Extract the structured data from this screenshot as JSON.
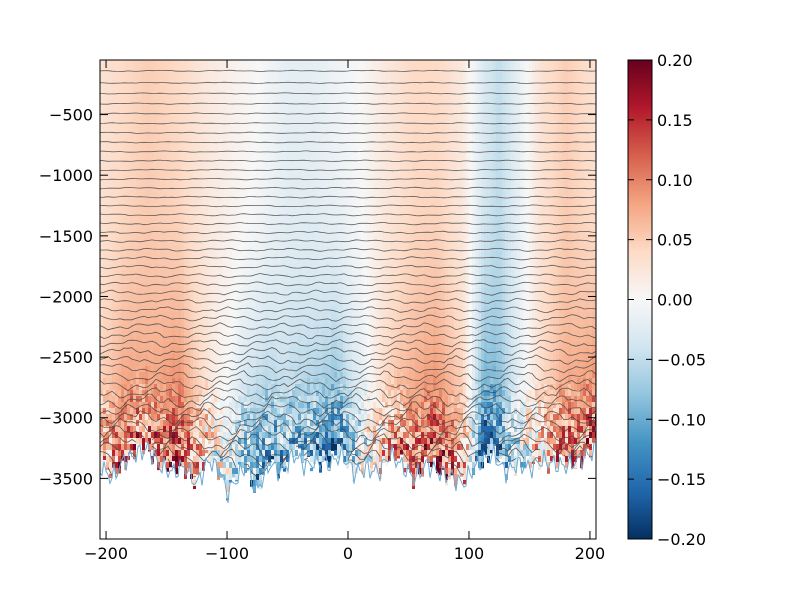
{
  "chart_data": {
    "type": "heatmap",
    "title": "",
    "xlabel": "",
    "ylabel": "",
    "xlim": [
      -205,
      205
    ],
    "ylim": [
      -4000,
      -50
    ],
    "xticks": [
      {
        "value": -200,
        "label": "−200"
      },
      {
        "value": -100,
        "label": "−100"
      },
      {
        "value": 0,
        "label": "0"
      },
      {
        "value": 100,
        "label": "100"
      },
      {
        "value": 200,
        "label": "200"
      }
    ],
    "yticks": [
      {
        "value": -500,
        "label": "−500"
      },
      {
        "value": -1000,
        "label": "−1000"
      },
      {
        "value": -1500,
        "label": "−1500"
      },
      {
        "value": -2000,
        "label": "−2000"
      },
      {
        "value": -2500,
        "label": "−2500"
      },
      {
        "value": -3000,
        "label": "−3000"
      },
      {
        "value": -3500,
        "label": "−3500"
      }
    ],
    "colorbar": {
      "cmap": "RdBu_r",
      "range": [
        -0.2,
        0.2
      ],
      "ticks": [
        {
          "value": 0.2,
          "label": "0.20"
        },
        {
          "value": 0.15,
          "label": "0.15"
        },
        {
          "value": 0.1,
          "label": "0.10"
        },
        {
          "value": 0.05,
          "label": "0.05"
        },
        {
          "value": 0.0,
          "label": "0.00"
        },
        {
          "value": -0.05,
          "label": "−0.05"
        },
        {
          "value": -0.1,
          "label": "−0.10"
        },
        {
          "value": -0.15,
          "label": "−0.15"
        },
        {
          "value": -0.2,
          "label": "−0.20"
        }
      ],
      "colors": [
        "#053061",
        "#2166ac",
        "#4393c3",
        "#92c5de",
        "#d1e5f0",
        "#f7f7f7",
        "#fddbc7",
        "#f4a582",
        "#d6604d",
        "#b2182b",
        "#67001f"
      ]
    },
    "field_columns": {
      "x": [
        -205,
        -185,
        -165,
        -140,
        -115,
        -95,
        -75,
        -50,
        -30,
        -10,
        10,
        30,
        55,
        75,
        95,
        112,
        125,
        140,
        160,
        180,
        205
      ],
      "surface_value": [
        0.03,
        0.04,
        0.05,
        0.04,
        0.02,
        0.01,
        0.0,
        -0.02,
        -0.02,
        -0.01,
        0.0,
        0.02,
        0.04,
        0.04,
        0.02,
        -0.03,
        -0.05,
        -0.02,
        0.03,
        0.05,
        0.03
      ],
      "bottom_value": [
        0.06,
        0.12,
        0.1,
        0.15,
        0.03,
        -0.04,
        -0.12,
        -0.08,
        -0.1,
        -0.14,
        -0.05,
        0.06,
        0.12,
        0.14,
        0.08,
        -0.16,
        -0.12,
        -0.03,
        0.05,
        0.1,
        0.14
      ]
    },
    "bathymetry": {
      "x": [
        -205,
        -195,
        -185,
        -175,
        -165,
        -155,
        -145,
        -135,
        -125,
        -115,
        -105,
        -100,
        -95,
        -85,
        -75,
        -65,
        -55,
        -45,
        -35,
        -25,
        -15,
        -5,
        5,
        15,
        25,
        35,
        45,
        55,
        65,
        75,
        85,
        95,
        105,
        112,
        120,
        130,
        140,
        150,
        160,
        170,
        180,
        190,
        200,
        205
      ],
      "depth": [
        -3400,
        -3500,
        -3350,
        -3300,
        -3250,
        -3400,
        -3450,
        -3400,
        -3550,
        -3350,
        -3450,
        -3620,
        -3550,
        -3400,
        -3600,
        -3380,
        -3450,
        -3300,
        -3400,
        -3350,
        -3380,
        -3300,
        -3450,
        -3420,
        -3450,
        -3300,
        -3400,
        -3500,
        -3380,
        -3450,
        -3480,
        -3550,
        -3400,
        -3350,
        -3300,
        -3450,
        -3380,
        -3420,
        -3350,
        -3380,
        -3400,
        -3350,
        -3300,
        -3250
      ]
    },
    "isolines": {
      "count": 46,
      "top": -140,
      "line_color": "#444444"
    }
  }
}
